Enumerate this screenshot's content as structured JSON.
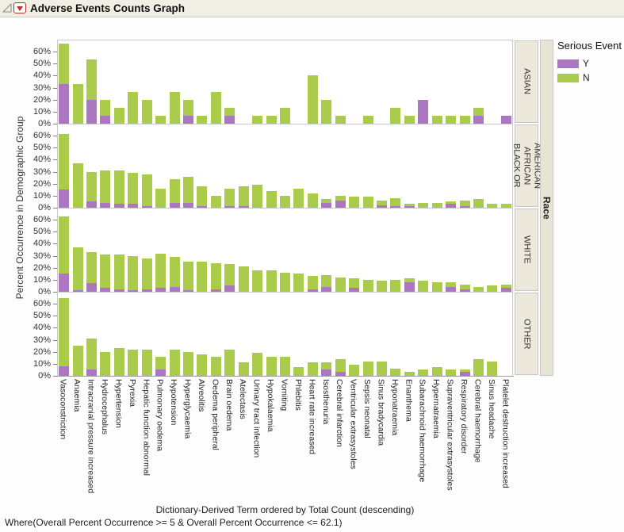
{
  "window": {
    "title": "Adverse Events Counts Graph"
  },
  "legend": {
    "title": "Serious Event",
    "items": [
      {
        "label": "Y",
        "color": "#AB77C1"
      },
      {
        "label": "N",
        "color": "#AACB4B"
      }
    ]
  },
  "axes": {
    "y_title": "Percent Occurrence in Demographic Group",
    "x_caption": "Dictionary-Derived Term ordered by Total Count (descending)",
    "race_label": "Race"
  },
  "footer": {
    "where_clause": "Where(Overall Percent Occurrence >= 5 & Overall Percent Occurrence <= 62.1)"
  },
  "chart_data": {
    "type": "bar",
    "stacked": true,
    "orientation": "vertical",
    "title": "Adverse Events Counts Graph",
    "xlabel": "Dictionary-Derived Term ordered by Total Count (descending)",
    "ylabel": "Percent Occurrence in Demographic Group",
    "panel_variable": "Race",
    "legend_title": "Serious Event",
    "legend_position": "right",
    "grid": false,
    "ylim": [
      0,
      70
    ],
    "y_tick_values": [
      0,
      10,
      20,
      30,
      40,
      50,
      60
    ],
    "y_tick_labels": [
      "0%",
      "10%",
      "20%",
      "30%",
      "40%",
      "50%",
      "60%"
    ],
    "series_colors": {
      "Y": "#AB77C1",
      "N": "#AACB4B"
    },
    "categories": [
      "Vasoconstriction",
      "Anaemia",
      "Intracranial pressure increased",
      "Hydrocephalus",
      "Hypertension",
      "Pyrexia",
      "Hepatic function abnormal",
      "Pulmonary oedema",
      "Hypotension",
      "Hyperglycaemia",
      "Alveolitis",
      "Oedema peripheral",
      "Brain oedema",
      "Atelectasis",
      "Urinary tract infection",
      "Hypokalaemia",
      "Vomiting",
      "Phlebitis",
      "Heart rate increased",
      "Isosthenuria",
      "Cerebral infarction",
      "Ventricular extrasystoles",
      "Sepsis neonatal",
      "Sinus bradycardia",
      "Hyponatraemia",
      "Enanthema",
      "Subarachnoid haemorrhage",
      "Hypernatraemia",
      "Supraventricular extrasystoles",
      "Respiratory disorder",
      "Cerebral haemorrhage",
      "Sinus headache",
      "Platelet destruction increased"
    ],
    "panels": [
      {
        "group": "ASIAN",
        "series": [
          {
            "name": "Y",
            "values": [
              33.3,
              0,
              20,
              6.7,
              0,
              0,
              0,
              0,
              0,
              6.7,
              0,
              0,
              6.7,
              0,
              0,
              0,
              0,
              0,
              0,
              0,
              0,
              0,
              0,
              0,
              0,
              0,
              20,
              0,
              0,
              0,
              6.7,
              0,
              6.7
            ]
          },
          {
            "name": "N",
            "values": [
              33.3,
              33.3,
              33.3,
              13.3,
              13.3,
              26.7,
              20,
              6.7,
              26.7,
              13.3,
              6.7,
              26.7,
              6.7,
              0,
              6.7,
              6.7,
              13.3,
              0,
              40,
              20,
              6.7,
              0,
              6.7,
              0,
              13.3,
              6.7,
              0,
              6.7,
              6.7,
              6.7,
              6.7,
              0,
              0
            ]
          }
        ]
      },
      {
        "group": "BLACK OR AFRICAN AMERICAN",
        "series": [
          {
            "name": "Y",
            "values": [
              15.4,
              0,
              5,
              4,
              3,
              3,
              1.5,
              0,
              4,
              4,
              1.5,
              0,
              1.5,
              1.5,
              0,
              0,
              0,
              0,
              0,
              4,
              6,
              0,
              0,
              2,
              1,
              1,
              0,
              0,
              3,
              1,
              0,
              0,
              0
            ]
          },
          {
            "name": "N",
            "values": [
              46.2,
              37,
              25,
              27,
              28,
              26,
              26.5,
              16,
              20,
              22,
              16.5,
              10,
              14.5,
              16.5,
              19,
              14,
              10,
              16,
              12,
              3,
              4,
              9,
              9,
              4,
              7,
              2,
              4,
              4,
              2,
              5,
              7,
              3,
              3
            ]
          }
        ]
      },
      {
        "group": "WHITE",
        "series": [
          {
            "name": "Y",
            "values": [
              15,
              1,
              7,
              3,
              2,
              1,
              2,
              3,
              4,
              1,
              0,
              2,
              5,
              0,
              0,
              0,
              0,
              0,
              2,
              4,
              0,
              3,
              0,
              0,
              0,
              8,
              0,
              0,
              4,
              2,
              0,
              0,
              3
            ]
          },
          {
            "name": "N",
            "values": [
              48,
              36,
              26,
              28,
              29,
              29,
              26,
              29,
              25,
              24,
              25,
              22,
              18,
              21,
              18,
              18,
              16,
              15,
              11,
              10,
              12,
              8,
              10,
              9,
              10,
              3,
              9,
              8,
              4,
              4,
              4,
              5,
              3
            ]
          }
        ]
      },
      {
        "group": "OTHER",
        "series": [
          {
            "name": "Y",
            "values": [
              8,
              0,
              5,
              0,
              0,
              0,
              0,
              5,
              0,
              0,
              0,
              0,
              0,
              0,
              0,
              0,
              0,
              0,
              0,
              5,
              3,
              0,
              0,
              0,
              0,
              0,
              0,
              0,
              0,
              3,
              0,
              0,
              0
            ]
          },
          {
            "name": "N",
            "values": [
              57,
              25,
              26,
              20,
              23,
              22,
              22,
              11,
              22,
              20,
              18,
              16,
              22,
              11,
              19,
              16,
              16,
              7,
              11,
              6,
              11,
              9,
              12,
              12,
              6,
              3,
              5,
              7,
              5,
              2,
              14,
              12,
              0
            ]
          }
        ]
      }
    ]
  }
}
